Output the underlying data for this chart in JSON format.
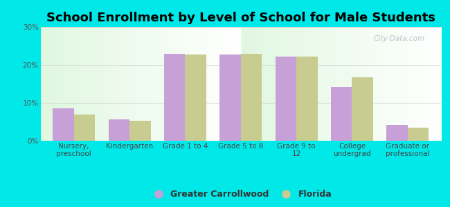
{
  "title": "School Enrollment by Level of School for Male Students",
  "categories": [
    "Nursery,\npreschool",
    "Kindergarten",
    "Grade 1 to 4",
    "Grade 5 to 8",
    "Grade 9 to\n12",
    "College\nundergrad",
    "Graduate or\nprofessional"
  ],
  "carrollwood_values": [
    8.5,
    5.7,
    23.0,
    22.8,
    22.2,
    14.2,
    4.2
  ],
  "florida_values": [
    7.0,
    5.2,
    22.7,
    23.0,
    22.1,
    16.8,
    3.4
  ],
  "carrollwood_color": "#c8a0d8",
  "florida_color": "#c8cc90",
  "legend_labels": [
    "Greater Carrollwood",
    "Florida"
  ],
  "ylim": [
    0,
    30
  ],
  "yticks": [
    0,
    10,
    20,
    30
  ],
  "ytick_labels": [
    "0%",
    "10%",
    "20%",
    "30%"
  ],
  "bg_color": "#00e8e8",
  "plot_bg_color_top": "#e8f5e8",
  "plot_bg_color_bottom": "#f5fff5",
  "bar_width": 0.38,
  "title_fontsize": 13,
  "tick_fontsize": 7.5,
  "legend_fontsize": 9,
  "watermark": "City-Data.com"
}
